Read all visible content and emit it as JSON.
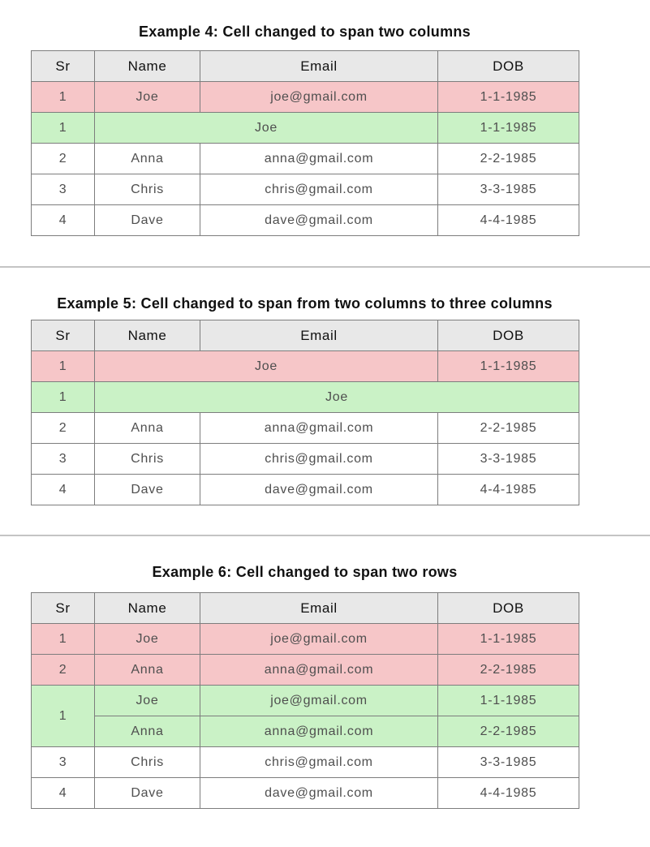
{
  "colors": {
    "header_bg": "#e8e8e8",
    "row_pink": "#f6c6c8",
    "row_green": "#caf2c6",
    "cell_border": "#7d7d7d",
    "divider": "#c4c4c4"
  },
  "columns": [
    "Sr",
    "Name",
    "Email",
    "DOB"
  ],
  "sections": [
    {
      "title": "Example 4: Cell changed to span two columns",
      "rows": [
        {
          "variant": "pink",
          "cells": [
            {
              "text": "1"
            },
            {
              "text": "Joe"
            },
            {
              "text": "joe@gmail.com"
            },
            {
              "text": "1-1-1985"
            }
          ]
        },
        {
          "variant": "green",
          "cells": [
            {
              "text": "1"
            },
            {
              "text": "Joe",
              "colspan": 2
            },
            {
              "text": "1-1-1985"
            }
          ]
        },
        {
          "variant": "white",
          "cells": [
            {
              "text": "2"
            },
            {
              "text": "Anna"
            },
            {
              "text": "anna@gmail.com"
            },
            {
              "text": "2-2-1985"
            }
          ]
        },
        {
          "variant": "white",
          "cells": [
            {
              "text": "3"
            },
            {
              "text": "Chris"
            },
            {
              "text": "chris@gmail.com"
            },
            {
              "text": "3-3-1985"
            }
          ]
        },
        {
          "variant": "white",
          "cells": [
            {
              "text": "4"
            },
            {
              "text": "Dave"
            },
            {
              "text": "dave@gmail.com"
            },
            {
              "text": "4-4-1985"
            }
          ]
        }
      ]
    },
    {
      "title": "Example 5: Cell changed to span from two columns to three columns",
      "rows": [
        {
          "variant": "pink",
          "cells": [
            {
              "text": "1"
            },
            {
              "text": "Joe",
              "colspan": 2
            },
            {
              "text": "1-1-1985"
            }
          ]
        },
        {
          "variant": "green",
          "cells": [
            {
              "text": "1"
            },
            {
              "text": "Joe",
              "colspan": 3
            }
          ]
        },
        {
          "variant": "white",
          "cells": [
            {
              "text": "2"
            },
            {
              "text": "Anna"
            },
            {
              "text": "anna@gmail.com"
            },
            {
              "text": "2-2-1985"
            }
          ]
        },
        {
          "variant": "white",
          "cells": [
            {
              "text": "3"
            },
            {
              "text": "Chris"
            },
            {
              "text": "chris@gmail.com"
            },
            {
              "text": "3-3-1985"
            }
          ]
        },
        {
          "variant": "white",
          "cells": [
            {
              "text": "4"
            },
            {
              "text": "Dave"
            },
            {
              "text": "dave@gmail.com"
            },
            {
              "text": "4-4-1985"
            }
          ]
        }
      ]
    },
    {
      "title": "Example 6: Cell changed to span two rows",
      "rows": [
        {
          "variant": "pink",
          "cells": [
            {
              "text": "1"
            },
            {
              "text": "Joe"
            },
            {
              "text": "joe@gmail.com"
            },
            {
              "text": "1-1-1985"
            }
          ]
        },
        {
          "variant": "pink",
          "cells": [
            {
              "text": "2"
            },
            {
              "text": "Anna"
            },
            {
              "text": "anna@gmail.com"
            },
            {
              "text": "2-2-1985"
            }
          ]
        },
        {
          "variant": "green",
          "cells": [
            {
              "text": "1",
              "rowspan": 2
            },
            {
              "text": "Joe"
            },
            {
              "text": "joe@gmail.com"
            },
            {
              "text": "1-1-1985"
            }
          ]
        },
        {
          "variant": "green",
          "cells": [
            {
              "text": "Anna"
            },
            {
              "text": "anna@gmail.com"
            },
            {
              "text": "2-2-1985"
            }
          ]
        },
        {
          "variant": "white",
          "cells": [
            {
              "text": "3"
            },
            {
              "text": "Chris"
            },
            {
              "text": "chris@gmail.com"
            },
            {
              "text": "3-3-1985"
            }
          ]
        },
        {
          "variant": "white",
          "cells": [
            {
              "text": "4"
            },
            {
              "text": "Dave"
            },
            {
              "text": "dave@gmail.com"
            },
            {
              "text": "4-4-1985"
            }
          ]
        }
      ]
    }
  ]
}
